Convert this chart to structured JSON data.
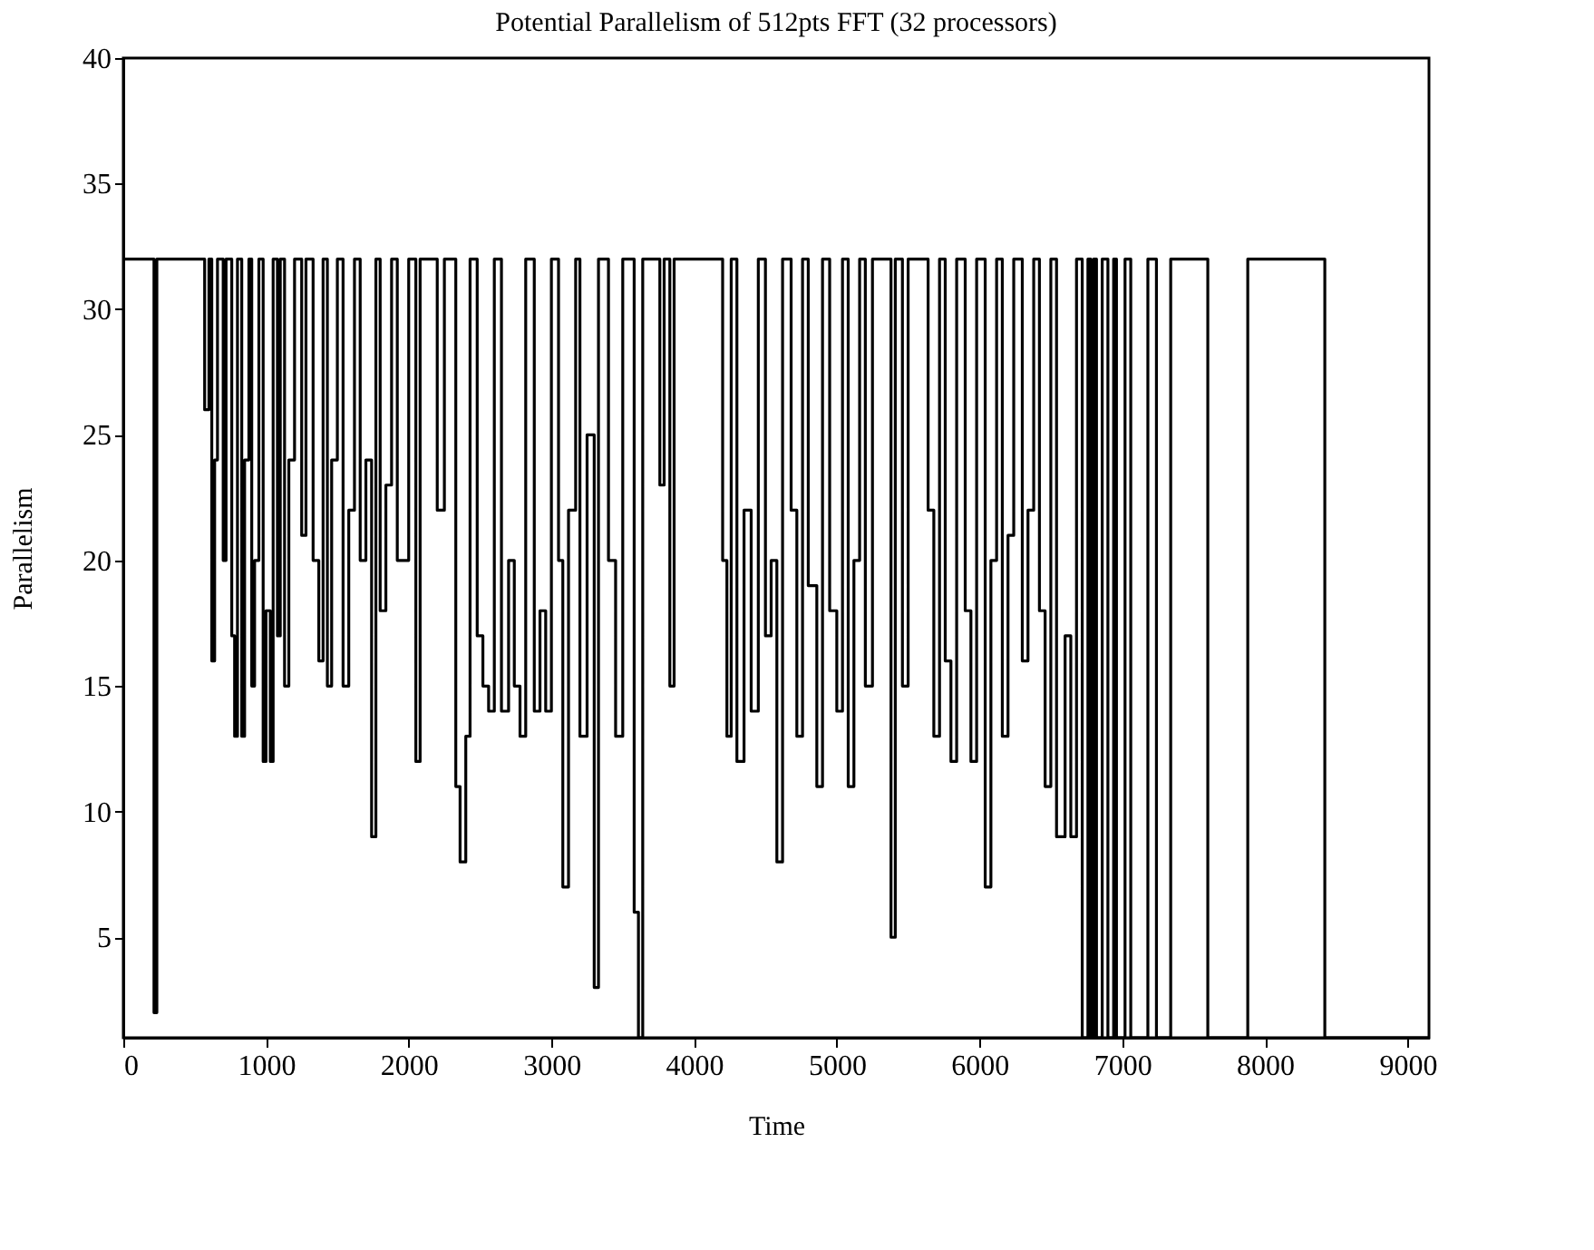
{
  "chart_data": {
    "type": "step",
    "title": "Potential Parallelism of 512pts FFT (32 processors)",
    "xlabel": "Time",
    "ylabel": "Parallelism",
    "xlim": [
      0,
      9150
    ],
    "ylim": [
      1,
      40
    ],
    "xticks": [
      0,
      1000,
      2000,
      3000,
      4000,
      5000,
      6000,
      7000,
      8000,
      9000
    ],
    "yticks": [
      5,
      10,
      15,
      20,
      25,
      30,
      35,
      40
    ],
    "grid": false,
    "marker": "none",
    "line_style": "solid",
    "series": [
      {
        "color": "#000000",
        "x": [
          0,
          215,
          235,
          570,
          600,
          620,
          640,
          660,
          700,
          720,
          760,
          780,
          800,
          830,
          850,
          880,
          900,
          920,
          950,
          980,
          1000,
          1030,
          1050,
          1080,
          1100,
          1130,
          1160,
          1200,
          1250,
          1280,
          1330,
          1370,
          1400,
          1430,
          1460,
          1500,
          1540,
          1580,
          1620,
          1660,
          1700,
          1740,
          1770,
          1800,
          1840,
          1880,
          1920,
          2000,
          2050,
          2080,
          2200,
          2250,
          2330,
          2360,
          2400,
          2430,
          2480,
          2520,
          2560,
          2600,
          2650,
          2700,
          2740,
          2780,
          2820,
          2880,
          2920,
          2960,
          3000,
          3050,
          3080,
          3120,
          3170,
          3200,
          3250,
          3300,
          3330,
          3400,
          3450,
          3500,
          3580,
          3610,
          3640,
          3760,
          3790,
          3830,
          3860,
          4200,
          4230,
          4260,
          4300,
          4350,
          4400,
          4450,
          4500,
          4540,
          4580,
          4620,
          4680,
          4720,
          4760,
          4800,
          4860,
          4900,
          4950,
          5000,
          5040,
          5080,
          5120,
          5160,
          5200,
          5250,
          5380,
          5410,
          5460,
          5500,
          5640,
          5680,
          5720,
          5760,
          5800,
          5840,
          5900,
          5940,
          5980,
          6040,
          6080,
          6120,
          6160,
          6200,
          6240,
          6300,
          6340,
          6380,
          6420,
          6460,
          6500,
          6540,
          6600,
          6640,
          6680,
          6720,
          6760,
          6780,
          6800,
          6820,
          6860,
          6900,
          6940,
          6960,
          7020,
          7060,
          7180,
          7240,
          7340,
          7600,
          7880,
          8420,
          9150
        ],
        "values": [
          32,
          2,
          32,
          26,
          32,
          16,
          24,
          32,
          20,
          32,
          17,
          13,
          32,
          13,
          24,
          32,
          15,
          20,
          32,
          12,
          18,
          12,
          32,
          17,
          32,
          15,
          24,
          32,
          21,
          32,
          20,
          16,
          32,
          15,
          24,
          32,
          15,
          22,
          32,
          20,
          24,
          9,
          32,
          18,
          23,
          32,
          20,
          32,
          12,
          32,
          22,
          32,
          11,
          8,
          13,
          32,
          17,
          15,
          14,
          32,
          14,
          20,
          15,
          13,
          32,
          14,
          18,
          14,
          32,
          20,
          7,
          22,
          32,
          13,
          25,
          3,
          32,
          20,
          13,
          32,
          6,
          1,
          32,
          23,
          32,
          15,
          32,
          20,
          13,
          32,
          12,
          22,
          14,
          32,
          17,
          20,
          8,
          32,
          22,
          13,
          32,
          19,
          11,
          32,
          18,
          14,
          32,
          11,
          20,
          32,
          15,
          32,
          5,
          32,
          15,
          32,
          22,
          13,
          32,
          16,
          12,
          32,
          18,
          12,
          32,
          7,
          20,
          32,
          13,
          21,
          32,
          16,
          22,
          32,
          18,
          11,
          32,
          9,
          17,
          9,
          32,
          1,
          32,
          1,
          32,
          1,
          32,
          1,
          32,
          1,
          32,
          1,
          32,
          1,
          32,
          1,
          32,
          1,
          1
        ]
      }
    ]
  }
}
